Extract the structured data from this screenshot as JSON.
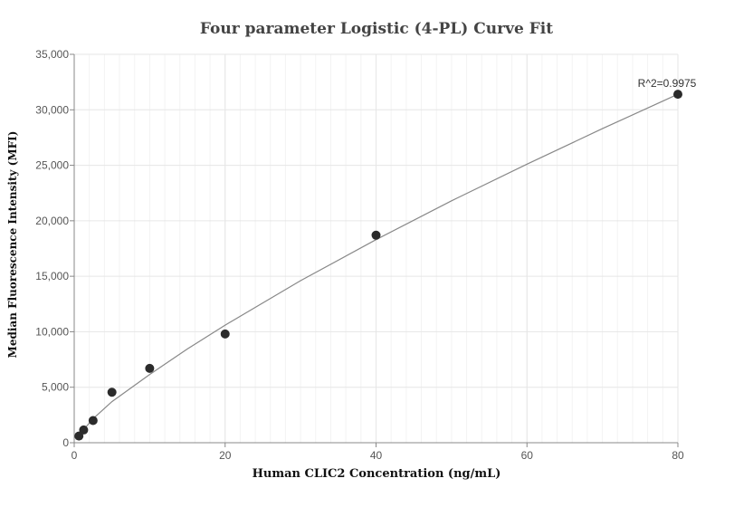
{
  "chart_data": {
    "type": "scatter",
    "title": "Four parameter Logistic (4-PL) Curve Fit",
    "xlabel": "Human CLIC2 Concentration (ng/mL)",
    "ylabel": "Median Fluorescence Intensity (MFI)",
    "xlim": [
      0,
      80
    ],
    "ylim": [
      0,
      35000
    ],
    "x_ticks": [
      0,
      20,
      40,
      60,
      80
    ],
    "x_tick_labels": [
      "0",
      "20",
      "40",
      "60",
      "80"
    ],
    "y_ticks": [
      0,
      5000,
      10000,
      15000,
      20000,
      25000,
      30000,
      35000
    ],
    "y_tick_labels": [
      "0",
      "5,000",
      "10,000",
      "15,000",
      "20,000",
      "25,000",
      "30,000",
      "35,000"
    ],
    "grid": true,
    "points": [
      {
        "x": 0.625,
        "y": 600
      },
      {
        "x": 1.25,
        "y": 1150
      },
      {
        "x": 2.5,
        "y": 2000
      },
      {
        "x": 5,
        "y": 4550
      },
      {
        "x": 10,
        "y": 6700
      },
      {
        "x": 20,
        "y": 9800
      },
      {
        "x": 40,
        "y": 18700
      },
      {
        "x": 80,
        "y": 31400
      }
    ],
    "fit_curve": {
      "x": [
        0.625,
        1.25,
        2.5,
        5,
        10,
        15,
        20,
        30,
        40,
        50,
        60,
        70,
        80
      ],
      "y": [
        620,
        1180,
        2150,
        3700,
        6150,
        8450,
        10600,
        14600,
        18300,
        21800,
        25100,
        28300,
        31400
      ]
    },
    "annotation": "R^2=0.9975",
    "colors": {
      "points": "#2b2b2b",
      "curve": "#888888",
      "grid": "#e6e6e6",
      "axis": "#888888"
    }
  }
}
